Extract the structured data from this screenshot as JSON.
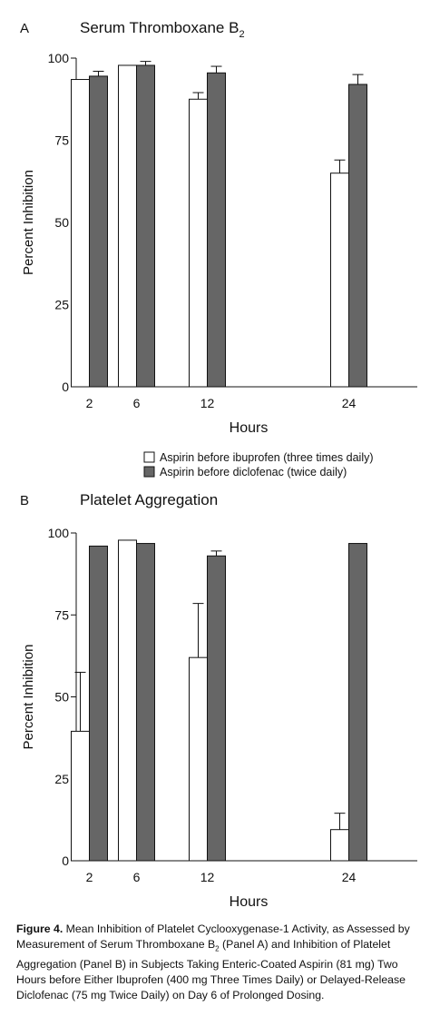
{
  "chart_data": [
    {
      "type": "bar",
      "panel_label": "A",
      "title": "Serum Thromboxane B",
      "title_subscript": "2",
      "xlabel": "Hours",
      "ylabel": "Percent Inhibition",
      "ylim": [
        0,
        100
      ],
      "yticks": [
        "0",
        "25",
        "50",
        "75",
        "100"
      ],
      "categories": [
        "2",
        "6",
        "12",
        "24"
      ],
      "x_positions_hours": [
        2,
        6,
        12,
        24
      ],
      "series": [
        {
          "name": "Aspirin before ibuprofen (three times daily)",
          "color": "#ffffff",
          "values": [
            93.5,
            97.8,
            87.5,
            65
          ],
          "error_upper": [
            null,
            null,
            89.5,
            69
          ]
        },
        {
          "name": "Aspirin before diclofenac (twice daily)",
          "color": "#666666",
          "values": [
            94.5,
            97.8,
            95.5,
            92
          ],
          "error_upper": [
            96,
            99,
            97.5,
            95
          ]
        }
      ],
      "legend": "below-right",
      "grid": false
    },
    {
      "type": "bar",
      "panel_label": "B",
      "title": "Platelet Aggregation",
      "title_subscript": "",
      "xlabel": "Hours",
      "ylabel": "Percent Inhibition",
      "ylim": [
        0,
        100
      ],
      "yticks": [
        "0",
        "25",
        "50",
        "75",
        "100"
      ],
      "categories": [
        "2",
        "6",
        "12",
        "24"
      ],
      "x_positions_hours": [
        2,
        6,
        12,
        24
      ],
      "series": [
        {
          "name": "Aspirin before ibuprofen (three times daily)",
          "color": "#ffffff",
          "values": [
            39.5,
            97.8,
            62,
            9.5
          ],
          "error_upper": [
            57.5,
            null,
            78.5,
            14.5
          ]
        },
        {
          "name": "Aspirin before diclofenac (twice daily)",
          "color": "#666666",
          "values": [
            96,
            96.8,
            93,
            96.8
          ],
          "error_upper": [
            null,
            null,
            94.5,
            null
          ]
        }
      ],
      "legend": "none",
      "grid": false
    }
  ],
  "caption": {
    "label": "Figure 4.",
    "text": " Mean Inhibition of Platelet Cyclooxygenase-1 Activity, as Assessed by Measurement of Serum Thromboxane B",
    "sub": "2",
    "text2": " (Panel A) and Inhibition of Platelet Aggregation (Panel B) in Subjects Taking Enteric-Coated Aspirin (81 mg) Two Hours before Either Ibuprofen (400 mg Three Times Daily) or Delayed-Release Diclofenac (75 mg Twice Daily) on Day 6 of Prolonged Dosing."
  }
}
